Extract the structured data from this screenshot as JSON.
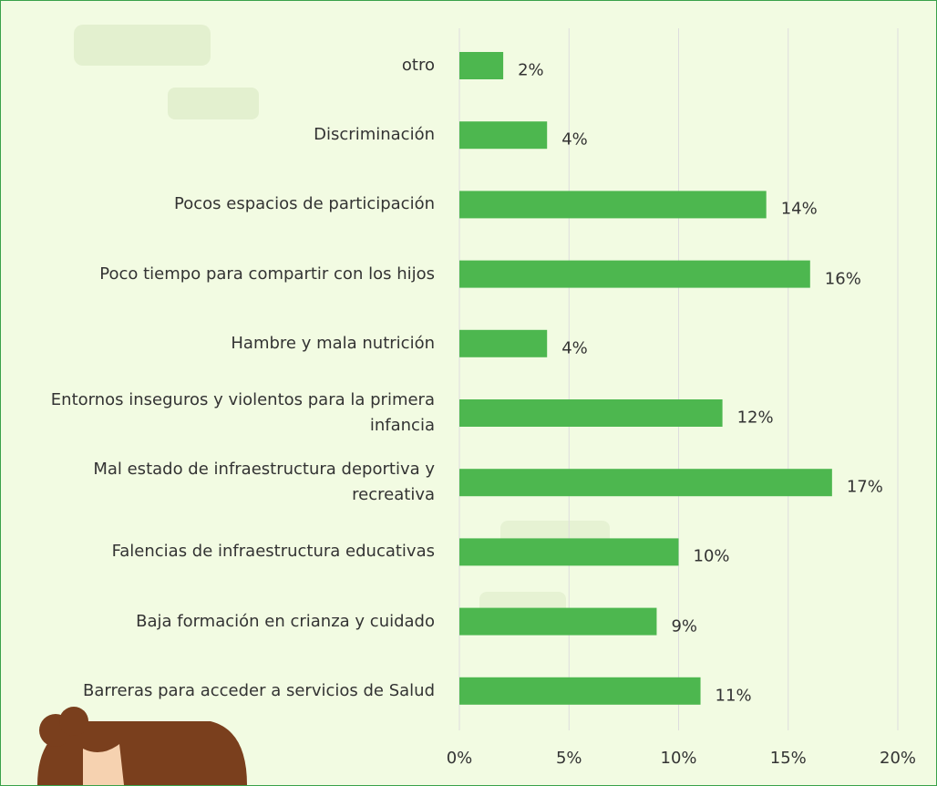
{
  "chart_data": {
    "type": "bar",
    "orientation": "horizontal",
    "categories": [
      "otro",
      "Discriminación",
      "Pocos espacios de participación",
      "Poco tiempo para compartir con los hijos",
      "Hambre y mala nutrición",
      "Entornos inseguros y violentos para la primera infancia",
      "Mal estado de infraestructura deportiva y recreativa",
      "Falencias de infraestructura educativas",
      "Baja formación en crianza y cuidado",
      "Barreras para acceder a servicios de Salud"
    ],
    "values": [
      2,
      4,
      14,
      16,
      4,
      12,
      17,
      10,
      9,
      11
    ],
    "value_labels": [
      "2%",
      "4%",
      "14%",
      "16%",
      "4%",
      "12%",
      "17%",
      "10%",
      "9%",
      "11%"
    ],
    "color": "#4db74f",
    "xlim": [
      0,
      20
    ],
    "xticks": [
      {
        "value": 0,
        "label": "0%"
      },
      {
        "value": 5,
        "label": "5%"
      },
      {
        "value": 10,
        "label": "10%"
      },
      {
        "value": 15,
        "label": "15%"
      },
      {
        "value": 20,
        "label": "20%"
      }
    ],
    "grid": true
  }
}
